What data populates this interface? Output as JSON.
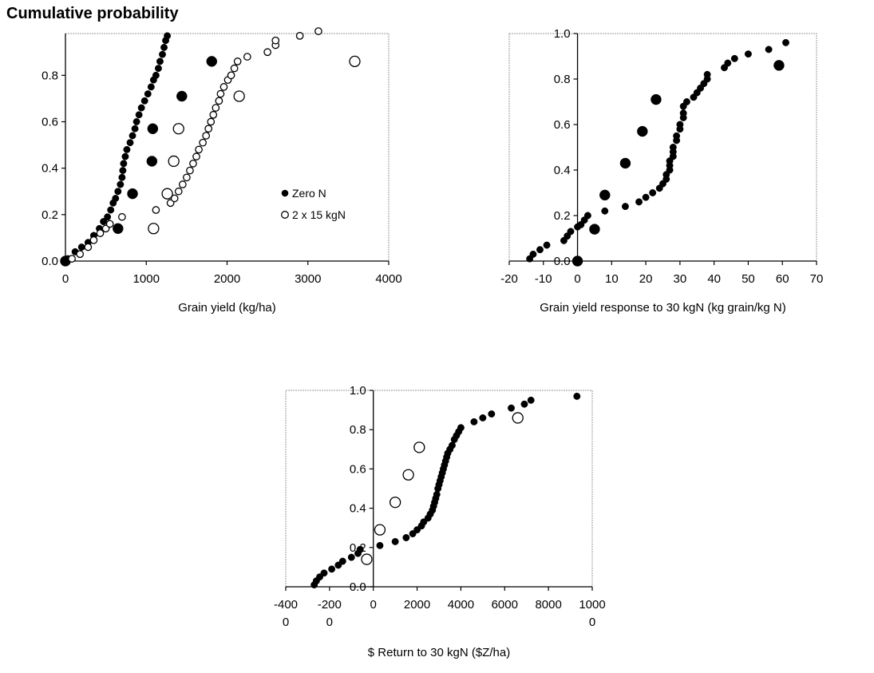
{
  "header": {
    "title": "Cumulative probability"
  },
  "chart_data": [
    {
      "type": "scatter",
      "id": "yield",
      "xlabel": "Grain yield (kg/ha)",
      "ylabel": "",
      "xlim": [
        0,
        4000
      ],
      "ylim": [
        0,
        0.98
      ],
      "xticks": [
        "0",
        "1000",
        "2000",
        "3000",
        "4000"
      ],
      "yticks": [
        "0.0",
        "0.2",
        "0.4",
        "0.6",
        "0.8"
      ],
      "legend": [
        "Zero N",
        "2 x 15 kgN"
      ],
      "series": [
        {
          "name": "Zero N",
          "marker": "filled-small",
          "points": [
            [
              30,
              0.01
            ],
            [
              120,
              0.04
            ],
            [
              200,
              0.06
            ],
            [
              280,
              0.08
            ],
            [
              350,
              0.11
            ],
            [
              420,
              0.14
            ],
            [
              470,
              0.17
            ],
            [
              520,
              0.19
            ],
            [
              560,
              0.22
            ],
            [
              590,
              0.25
            ],
            [
              620,
              0.27
            ],
            [
              650,
              0.3
            ],
            [
              680,
              0.33
            ],
            [
              700,
              0.36
            ],
            [
              710,
              0.39
            ],
            [
              720,
              0.42
            ],
            [
              740,
              0.45
            ],
            [
              760,
              0.48
            ],
            [
              800,
              0.51
            ],
            [
              830,
              0.54
            ],
            [
              860,
              0.57
            ],
            [
              880,
              0.6
            ],
            [
              910,
              0.63
            ],
            [
              940,
              0.66
            ],
            [
              980,
              0.69
            ],
            [
              1020,
              0.72
            ],
            [
              1060,
              0.75
            ],
            [
              1090,
              0.78
            ],
            [
              1120,
              0.8
            ],
            [
              1150,
              0.83
            ],
            [
              1170,
              0.86
            ],
            [
              1200,
              0.89
            ],
            [
              1220,
              0.92
            ],
            [
              1240,
              0.95
            ],
            [
              1260,
              0.97
            ]
          ]
        },
        {
          "name": "Zero N",
          "marker": "filled-large",
          "points": [
            [
              0,
              0.0
            ],
            [
              650,
              0.14
            ],
            [
              830,
              0.29
            ],
            [
              1070,
              0.43
            ],
            [
              1080,
              0.57
            ],
            [
              1440,
              0.71
            ],
            [
              1810,
              0.86
            ]
          ]
        },
        {
          "name": "2 x 15 kgN",
          "marker": "open-small",
          "points": [
            [
              80,
              0.01
            ],
            [
              180,
              0.03
            ],
            [
              280,
              0.06
            ],
            [
              350,
              0.09
            ],
            [
              430,
              0.12
            ],
            [
              500,
              0.14
            ],
            [
              550,
              0.16
            ],
            [
              700,
              0.19
            ],
            [
              1120,
              0.22
            ],
            [
              1300,
              0.25
            ],
            [
              1350,
              0.27
            ],
            [
              1400,
              0.3
            ],
            [
              1450,
              0.33
            ],
            [
              1500,
              0.36
            ],
            [
              1540,
              0.39
            ],
            [
              1580,
              0.42
            ],
            [
              1620,
              0.45
            ],
            [
              1650,
              0.48
            ],
            [
              1700,
              0.51
            ],
            [
              1740,
              0.54
            ],
            [
              1770,
              0.57
            ],
            [
              1800,
              0.6
            ],
            [
              1830,
              0.63
            ],
            [
              1860,
              0.66
            ],
            [
              1900,
              0.69
            ],
            [
              1920,
              0.72
            ],
            [
              1960,
              0.75
            ],
            [
              2010,
              0.78
            ],
            [
              2050,
              0.8
            ],
            [
              2090,
              0.83
            ],
            [
              2130,
              0.86
            ],
            [
              2250,
              0.88
            ],
            [
              2500,
              0.9
            ],
            [
              2600,
              0.93
            ],
            [
              2600,
              0.95
            ],
            [
              2900,
              0.97
            ],
            [
              3130,
              0.99
            ]
          ]
        },
        {
          "name": "2 x 15 kgN",
          "marker": "open-large",
          "points": [
            [
              1090,
              0.14
            ],
            [
              1260,
              0.29
            ],
            [
              1340,
              0.43
            ],
            [
              1400,
              0.57
            ],
            [
              2150,
              0.71
            ],
            [
              3580,
              0.86
            ]
          ]
        }
      ]
    },
    {
      "type": "scatter",
      "id": "response",
      "xlabel": "Grain yield response to 30 kgN (kg grain/kg N)",
      "ylabel": "",
      "xlim": [
        -20,
        70
      ],
      "ylim": [
        0,
        1.0
      ],
      "xticks": [
        "-20",
        "-10",
        "0",
        "10",
        "20",
        "30",
        "40",
        "50",
        "60",
        "70"
      ],
      "yticks": [
        "0.0",
        "0.2",
        "0.4",
        "0.6",
        "0.8",
        "1.0"
      ],
      "series": [
        {
          "name": "",
          "marker": "filled-small",
          "points": [
            [
              -14,
              0.01
            ],
            [
              -13,
              0.03
            ],
            [
              -11,
              0.05
            ],
            [
              -9,
              0.07
            ],
            [
              -4,
              0.09
            ],
            [
              -3,
              0.11
            ],
            [
              -2,
              0.13
            ],
            [
              0,
              0.15
            ],
            [
              1,
              0.16
            ],
            [
              2,
              0.18
            ],
            [
              3,
              0.2
            ],
            [
              8,
              0.22
            ],
            [
              14,
              0.24
            ],
            [
              18,
              0.26
            ],
            [
              20,
              0.28
            ],
            [
              22,
              0.3
            ],
            [
              24,
              0.32
            ],
            [
              25,
              0.34
            ],
            [
              26,
              0.36
            ],
            [
              26,
              0.38
            ],
            [
              27,
              0.4
            ],
            [
              27,
              0.42
            ],
            [
              27,
              0.44
            ],
            [
              28,
              0.46
            ],
            [
              28,
              0.48
            ],
            [
              28,
              0.5
            ],
            [
              29,
              0.53
            ],
            [
              29,
              0.55
            ],
            [
              30,
              0.58
            ],
            [
              30,
              0.6
            ],
            [
              31,
              0.63
            ],
            [
              31,
              0.65
            ],
            [
              31,
              0.68
            ],
            [
              32,
              0.7
            ],
            [
              34,
              0.72
            ],
            [
              35,
              0.74
            ],
            [
              36,
              0.76
            ],
            [
              37,
              0.78
            ],
            [
              38,
              0.8
            ],
            [
              38,
              0.82
            ],
            [
              43,
              0.85
            ],
            [
              44,
              0.87
            ],
            [
              46,
              0.89
            ],
            [
              50,
              0.91
            ],
            [
              56,
              0.93
            ],
            [
              61,
              0.96
            ]
          ]
        },
        {
          "name": "",
          "marker": "filled-large",
          "points": [
            [
              0,
              0.0
            ],
            [
              5,
              0.14
            ],
            [
              8,
              0.29
            ],
            [
              14,
              0.43
            ],
            [
              19,
              0.57
            ],
            [
              23,
              0.71
            ],
            [
              59,
              0.86
            ]
          ]
        }
      ]
    },
    {
      "type": "scatter",
      "id": "return",
      "xlabel": "$ Return to 30 kgN ($Z/ha)",
      "ylabel": "",
      "xlim": [
        -4000,
        10000
      ],
      "ylim": [
        0,
        1.0
      ],
      "xticks": [
        "-400\n0",
        "-200\n0",
        "0",
        "2000",
        "4000",
        "6000",
        "8000",
        "1000\n0"
      ],
      "yticks": [
        "0.0",
        "0.2",
        "0.4",
        "0.6",
        "0.8",
        "1.0"
      ],
      "series": [
        {
          "name": "",
          "marker": "filled-small",
          "points": [
            [
              -2700,
              0.01
            ],
            [
              -2600,
              0.03
            ],
            [
              -2450,
              0.05
            ],
            [
              -2250,
              0.07
            ],
            [
              -1900,
              0.09
            ],
            [
              -1600,
              0.11
            ],
            [
              -1400,
              0.13
            ],
            [
              -1000,
              0.15
            ],
            [
              -700,
              0.17
            ],
            [
              -600,
              0.19
            ],
            [
              300,
              0.21
            ],
            [
              1000,
              0.23
            ],
            [
              1500,
              0.25
            ],
            [
              1800,
              0.27
            ],
            [
              2000,
              0.29
            ],
            [
              2200,
              0.31
            ],
            [
              2300,
              0.33
            ],
            [
              2500,
              0.35
            ],
            [
              2600,
              0.37
            ],
            [
              2700,
              0.39
            ],
            [
              2750,
              0.41
            ],
            [
              2800,
              0.43
            ],
            [
              2850,
              0.45
            ],
            [
              2900,
              0.47
            ],
            [
              2950,
              0.5
            ],
            [
              3000,
              0.52
            ],
            [
              3050,
              0.54
            ],
            [
              3100,
              0.56
            ],
            [
              3150,
              0.58
            ],
            [
              3200,
              0.6
            ],
            [
              3250,
              0.62
            ],
            [
              3300,
              0.64
            ],
            [
              3350,
              0.66
            ],
            [
              3400,
              0.68
            ],
            [
              3500,
              0.7
            ],
            [
              3600,
              0.72
            ],
            [
              3700,
              0.75
            ],
            [
              3800,
              0.77
            ],
            [
              3900,
              0.79
            ],
            [
              4000,
              0.81
            ],
            [
              4600,
              0.84
            ],
            [
              5000,
              0.86
            ],
            [
              5400,
              0.88
            ],
            [
              6300,
              0.91
            ],
            [
              6900,
              0.93
            ],
            [
              7200,
              0.95
            ],
            [
              9300,
              0.97
            ]
          ]
        },
        {
          "name": "",
          "marker": "open-large",
          "points": [
            [
              -300,
              0.14
            ],
            [
              300,
              0.29
            ],
            [
              1000,
              0.43
            ],
            [
              1600,
              0.57
            ],
            [
              2100,
              0.71
            ],
            [
              6600,
              0.86
            ]
          ]
        }
      ]
    }
  ]
}
